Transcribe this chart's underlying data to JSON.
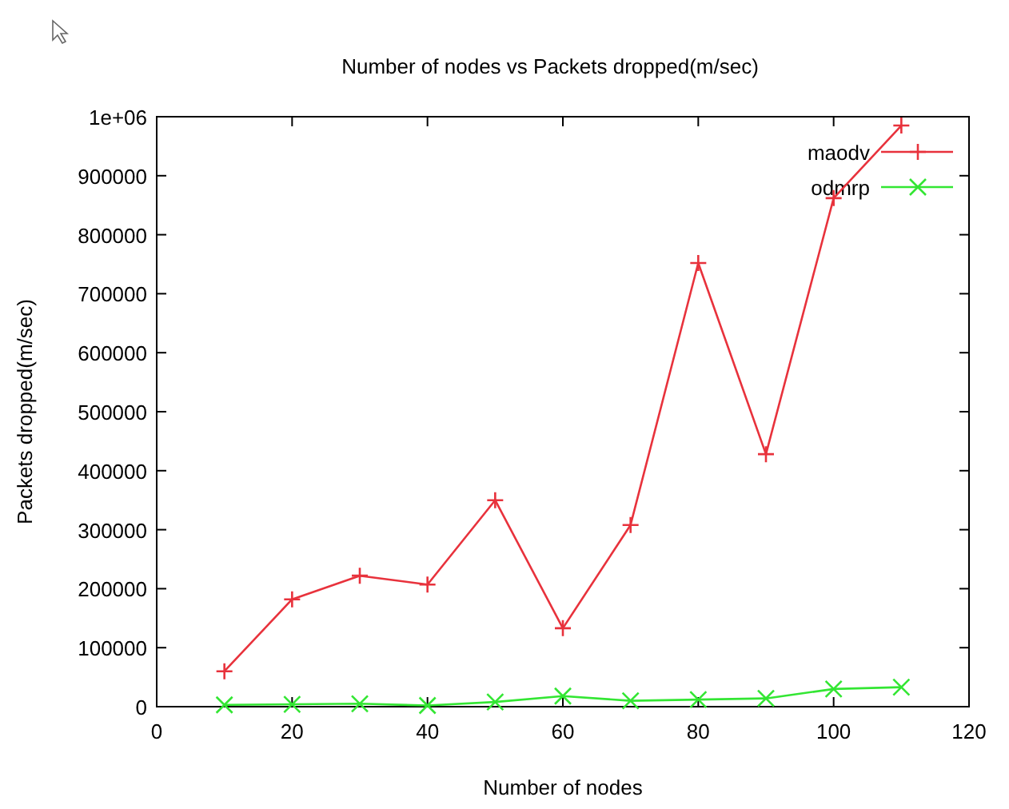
{
  "chart_data": {
    "type": "line",
    "title": "Number of nodes vs Packets dropped(m/sec)",
    "xlabel": "Number of nodes",
    "ylabel": "Packets dropped(m/sec)",
    "x": [
      10,
      20,
      30,
      40,
      50,
      60,
      70,
      80,
      90,
      100,
      110
    ],
    "xlim": [
      0,
      120
    ],
    "xticks": [
      0,
      20,
      40,
      60,
      80,
      100,
      120
    ],
    "ylim": [
      0,
      1000000
    ],
    "yticks": [
      0,
      100000,
      200000,
      300000,
      400000,
      500000,
      600000,
      700000,
      800000,
      900000,
      {
        "value": 1000000,
        "label": "1e+06"
      }
    ],
    "grid": false,
    "legend": "top right",
    "series": [
      {
        "name": "maodv",
        "color": "#e8323c",
        "marker": "plus",
        "values": [
          60000,
          182000,
          222000,
          207000,
          350000,
          133000,
          308000,
          752000,
          428000,
          862000,
          985000
        ]
      },
      {
        "name": "odmrp",
        "color": "#33e633",
        "marker": "cross",
        "values": [
          3000,
          4000,
          5000,
          2000,
          8000,
          18000,
          10000,
          12000,
          14000,
          30000,
          33000
        ]
      }
    ]
  }
}
